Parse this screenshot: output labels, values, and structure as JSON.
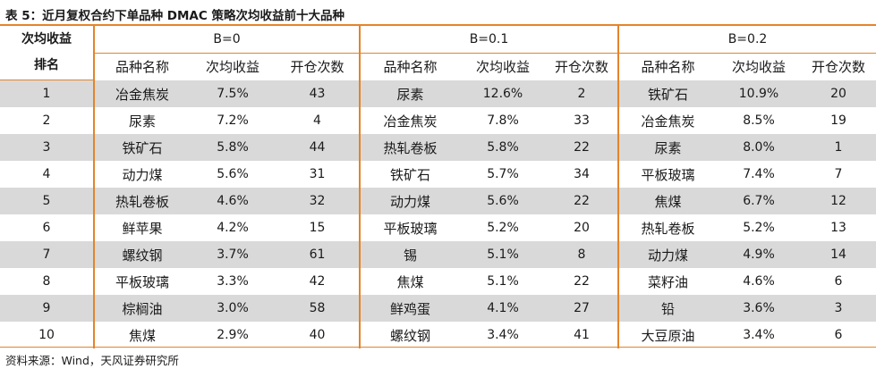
{
  "title": "表 5：近月复权合约下单品种 DMAC 策略次均收益前十大品种",
  "rank_header": [
    "次均收益",
    "排名"
  ],
  "groups": [
    "B=0",
    "B=0.1",
    "B=0.2"
  ],
  "sub_headers": [
    "品种名称",
    "次均收益",
    "开仓次数"
  ],
  "rows": [
    {
      "rank": "1",
      "g": [
        [
          "冶金焦炭",
          "7.5%",
          "43"
        ],
        [
          "尿素",
          "12.6%",
          "2"
        ],
        [
          "铁矿石",
          "10.9%",
          "20"
        ]
      ]
    },
    {
      "rank": "2",
      "g": [
        [
          "尿素",
          "7.2%",
          "4"
        ],
        [
          "冶金焦炭",
          "7.8%",
          "33"
        ],
        [
          "冶金焦炭",
          "8.5%",
          "19"
        ]
      ]
    },
    {
      "rank": "3",
      "g": [
        [
          "铁矿石",
          "5.8%",
          "44"
        ],
        [
          "热轧卷板",
          "5.8%",
          "22"
        ],
        [
          "尿素",
          "8.0%",
          "1"
        ]
      ]
    },
    {
      "rank": "4",
      "g": [
        [
          "动力煤",
          "5.6%",
          "31"
        ],
        [
          "铁矿石",
          "5.7%",
          "34"
        ],
        [
          "平板玻璃",
          "7.4%",
          "7"
        ]
      ]
    },
    {
      "rank": "5",
      "g": [
        [
          "热轧卷板",
          "4.6%",
          "32"
        ],
        [
          "动力煤",
          "5.6%",
          "22"
        ],
        [
          "焦煤",
          "6.7%",
          "12"
        ]
      ]
    },
    {
      "rank": "6",
      "g": [
        [
          "鲜苹果",
          "4.2%",
          "15"
        ],
        [
          "平板玻璃",
          "5.2%",
          "20"
        ],
        [
          "热轧卷板",
          "5.2%",
          "13"
        ]
      ]
    },
    {
      "rank": "7",
      "g": [
        [
          "螺纹钢",
          "3.7%",
          "61"
        ],
        [
          "锡",
          "5.1%",
          "8"
        ],
        [
          "动力煤",
          "4.9%",
          "14"
        ]
      ]
    },
    {
      "rank": "8",
      "g": [
        [
          "平板玻璃",
          "3.3%",
          "42"
        ],
        [
          "焦煤",
          "5.1%",
          "22"
        ],
        [
          "菜籽油",
          "4.6%",
          "6"
        ]
      ]
    },
    {
      "rank": "9",
      "g": [
        [
          "棕榈油",
          "3.0%",
          "58"
        ],
        [
          "鲜鸡蛋",
          "4.1%",
          "27"
        ],
        [
          "铅",
          "3.6%",
          "3"
        ]
      ]
    },
    {
      "rank": "10",
      "g": [
        [
          "焦煤",
          "2.9%",
          "40"
        ],
        [
          "螺纹钢",
          "3.4%",
          "41"
        ],
        [
          "大豆原油",
          "3.4%",
          "6"
        ]
      ]
    }
  ],
  "source": "资料来源：Wind，天风证券研究所",
  "colors": {
    "accent": "#e3842c",
    "shade": "#d9d9d9"
  }
}
